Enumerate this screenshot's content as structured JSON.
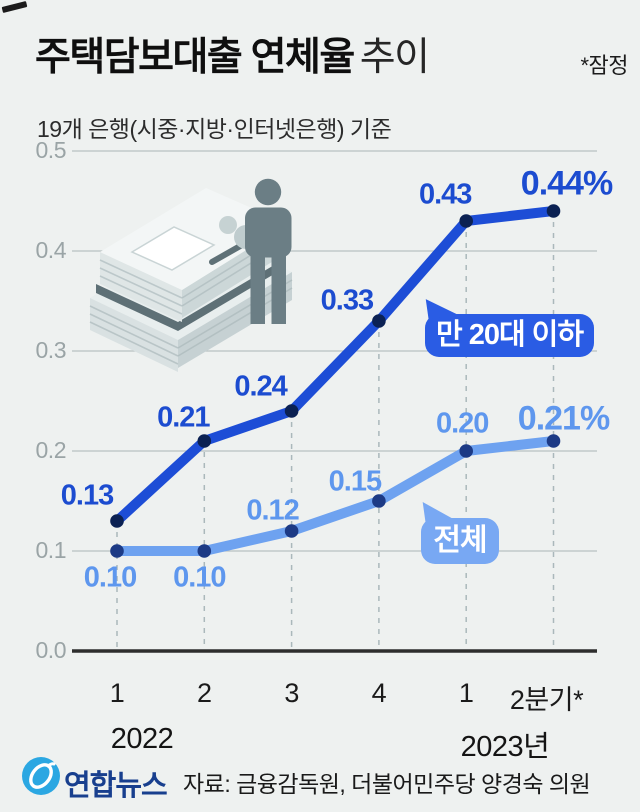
{
  "header": {
    "title_bold": "주택담보대출 연체율",
    "title_light": "추이",
    "note": "*잠정",
    "subtitle": "19개 은행(시중·지방·인터넷은행) 기준"
  },
  "footer": {
    "logo_text": "연합뉴스",
    "source": "자료: 금융감독원, 더불어민주당 양경숙 의원"
  },
  "chart_data": {
    "type": "line",
    "unit": "%",
    "x_categories": [
      "1",
      "2",
      "3",
      "4",
      "1",
      "2분기*"
    ],
    "x_year_labels": [
      "2022",
      "2023년"
    ],
    "y_ticks": [
      "0.5",
      "0.4",
      "0.3",
      "0.2",
      "0.1",
      "0.0"
    ],
    "ylim": [
      0.0,
      0.5
    ],
    "grid": true,
    "legend_style": "callout bubbles on lines",
    "series": [
      {
        "name": "만 20대 이하",
        "values": [
          0.13,
          0.21,
          0.24,
          0.33,
          0.43,
          0.44
        ],
        "point_labels": [
          "0.13",
          "0.21",
          "0.24",
          "0.33",
          "0.43",
          "0.44%"
        ],
        "line_color": "#1d4dd6",
        "dot_color": "#0b2153",
        "label_color": "#1c4cd0"
      },
      {
        "name": "전체",
        "values": [
          0.1,
          0.1,
          0.12,
          0.15,
          0.2,
          0.21
        ],
        "point_labels": [
          "0.10",
          "0.10",
          "0.12",
          "0.15",
          "0.20",
          "0.21%"
        ],
        "line_color": "#6ea2f0",
        "dot_color": "#1c3a85",
        "label_color": "#5e97ee"
      }
    ],
    "colors": {
      "background": "#eef1f0",
      "gridline": "#b9c1c1",
      "dashed_guide": "#aab8bb",
      "axis": "#2d2d2d",
      "tick_text": "#9aa4a6",
      "bubble_young": "#2a5ce4",
      "bubble_all": "#78a8f3",
      "logo_blue": "#2ba7e2",
      "logo_text_blue": "#183f8e"
    }
  }
}
